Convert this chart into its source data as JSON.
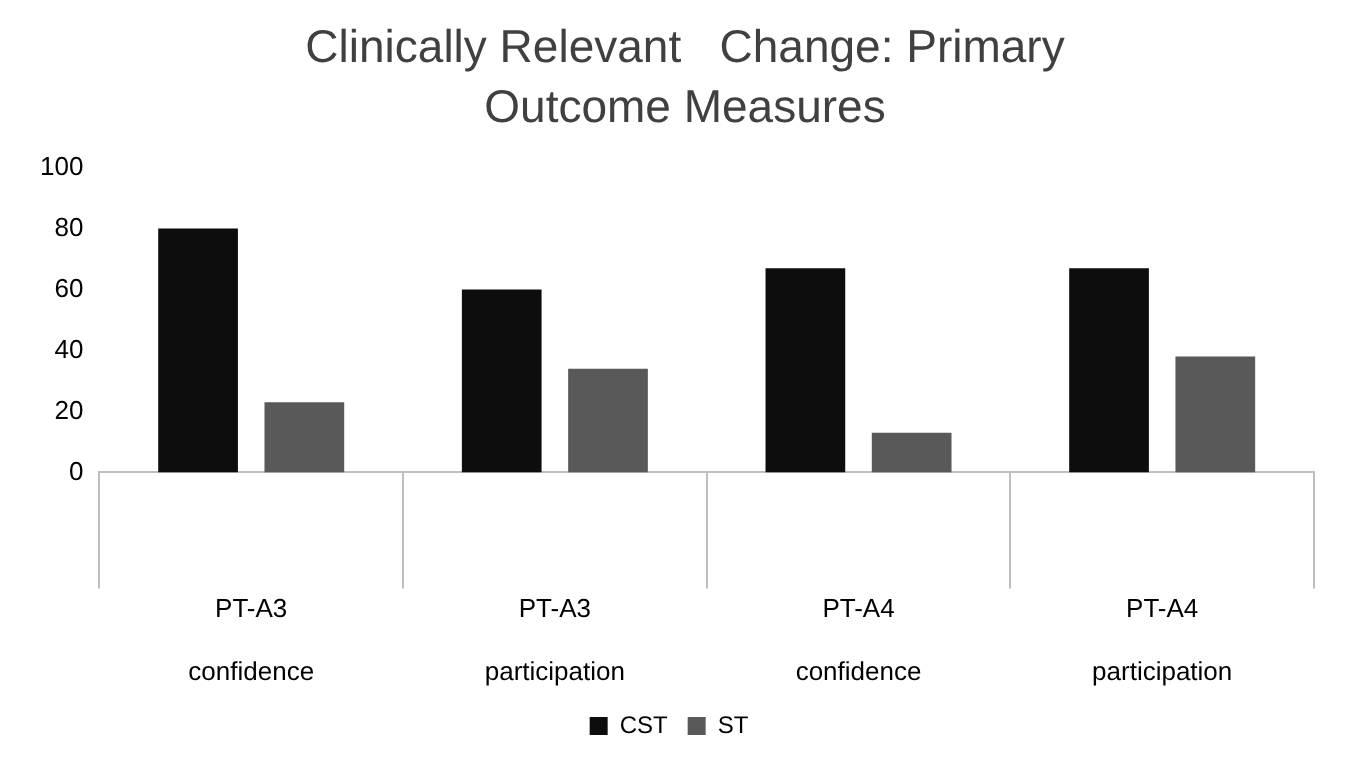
{
  "chart_data": {
    "type": "bar",
    "title": "Clinically Relevant   Change: Primary Outcome Measures",
    "categories": [
      "PT-A3 confidence",
      "PT-A3 participation",
      "PT-A4 confidence",
      "PT-A4 participation"
    ],
    "series": [
      {
        "name": "CST",
        "color": "#0d0d0d",
        "values": [
          80,
          60,
          67,
          67
        ]
      },
      {
        "name": "ST",
        "color": "#595959",
        "values": [
          23,
          34,
          13,
          38
        ]
      }
    ],
    "ylim": [
      0,
      100
    ],
    "yticks": [
      0,
      20,
      40,
      60,
      80,
      100
    ],
    "legend": "bottom"
  }
}
